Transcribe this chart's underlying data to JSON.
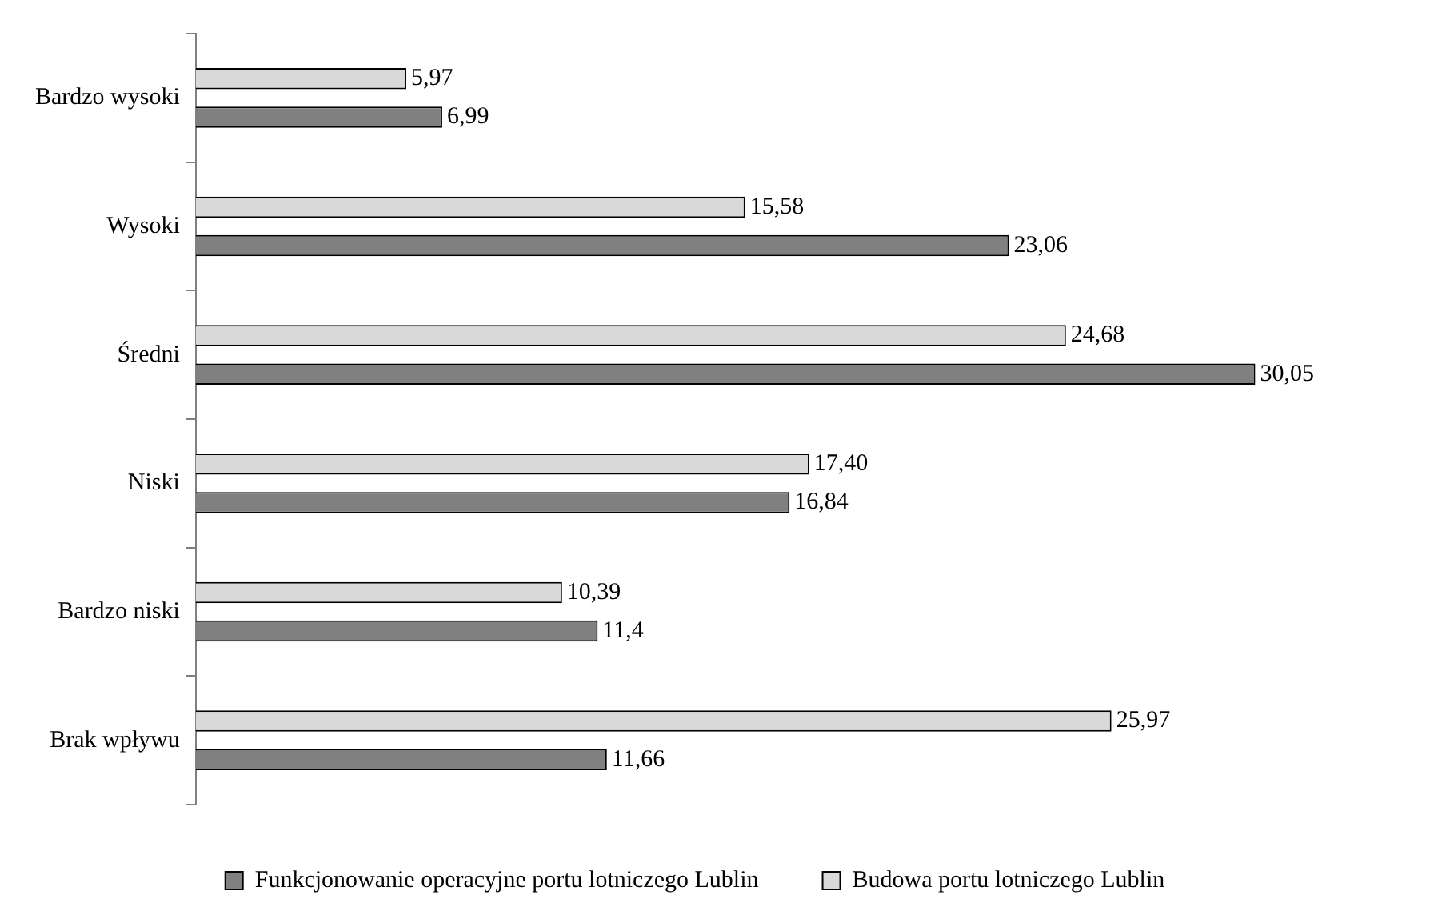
{
  "chart_data": {
    "type": "bar",
    "orientation": "horizontal",
    "categories": [
      "Bardzo wysoki",
      "Wysoki",
      "Średni",
      "Niski",
      "Bardzo niski",
      "Brak wpływu"
    ],
    "series": [
      {
        "name": "Funkcjonowanie operacyjne portu lotniczego Lublin",
        "color": "#808080",
        "values": [
          6.99,
          23.06,
          30.05,
          16.84,
          11.4,
          11.66
        ],
        "value_labels": [
          "6,99",
          "23,06",
          "30,05",
          "16,84",
          "11,4",
          "11,66"
        ]
      },
      {
        "name": "Budowa portu lotniczego Lublin",
        "color": "#d9d9d9",
        "values": [
          5.97,
          15.58,
          24.68,
          17.4,
          10.39,
          25.97
        ],
        "value_labels": [
          "5,97",
          "15,58",
          "24,68",
          "17,40",
          "10,39",
          "25,97"
        ]
      }
    ],
    "legend": "bottom"
  }
}
